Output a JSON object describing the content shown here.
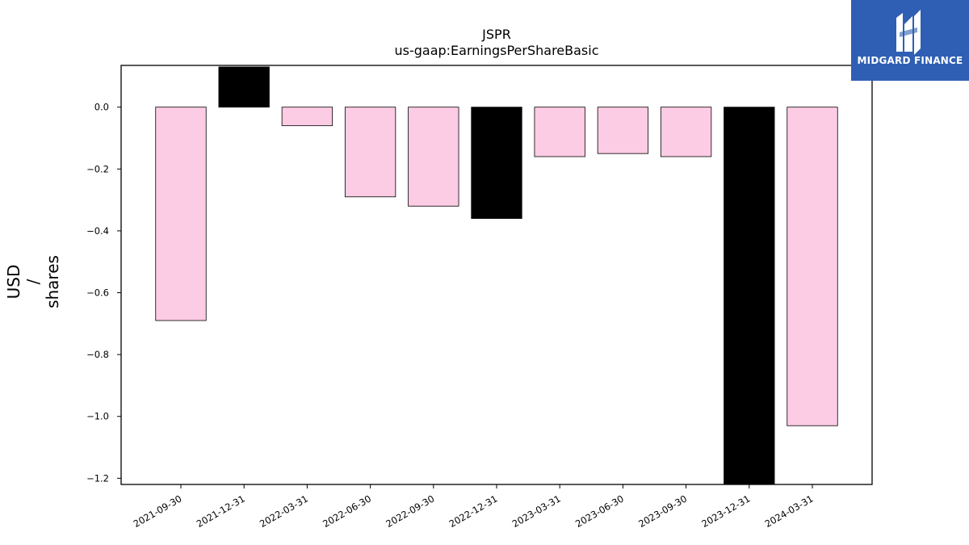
{
  "chart_data": {
    "type": "bar",
    "title": "JSPR",
    "subtitle": "us-gaap:EarningsPerShareBasic",
    "xlabel": "",
    "ylabel_lines": [
      "USD",
      "/",
      "shares"
    ],
    "categories": [
      "2021-09-30",
      "2021-12-31",
      "2022-03-31",
      "2022-06-30",
      "2022-09-30",
      "2022-12-31",
      "2023-03-31",
      "2023-06-30",
      "2023-09-30",
      "2023-12-31",
      "2024-03-31"
    ],
    "values": [
      -0.69,
      0.13,
      -0.06,
      -0.29,
      -0.32,
      -0.36,
      -0.16,
      -0.15,
      -0.16,
      -1.22,
      -1.03
    ],
    "bar_colors": [
      "#fccbe4",
      "#000000",
      "#fccbe4",
      "#fccbe4",
      "#fccbe4",
      "#000000",
      "#fccbe4",
      "#fccbe4",
      "#fccbe4",
      "#000000",
      "#fccbe4"
    ],
    "ylim": [
      -1.22,
      0.135
    ],
    "yticks": [
      0.0,
      -0.2,
      -0.4,
      -0.6,
      -0.8,
      -1.0,
      -1.2
    ],
    "ytick_labels": [
      "0.0",
      "−0.2",
      "−0.4",
      "−0.6",
      "−0.8",
      "−1.0",
      "−1.2"
    ],
    "grid": false
  },
  "logo": {
    "name": "MIDGARD FINANCE",
    "icon": "midgard-logo-icon",
    "background": "#2f5fb4"
  }
}
